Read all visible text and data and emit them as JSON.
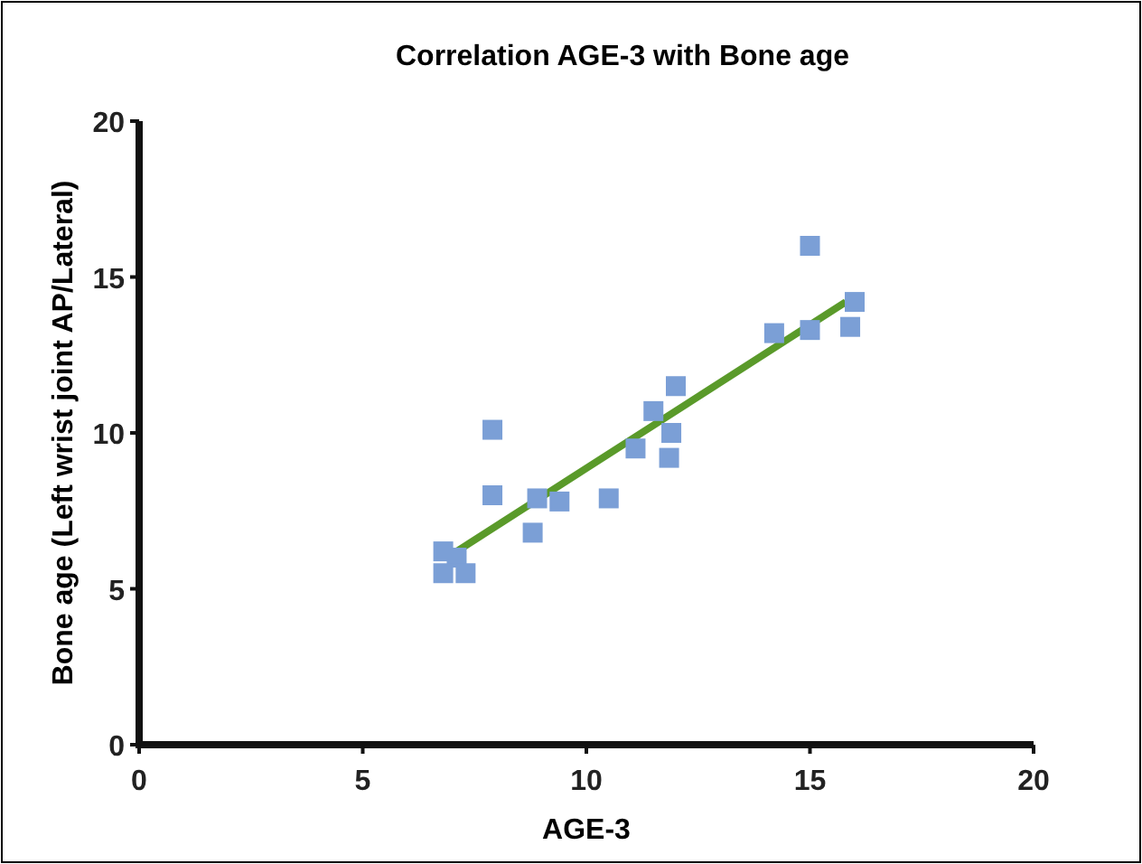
{
  "chart_data": {
    "type": "scatter",
    "title": "Correlation AGE-3 with Bone age",
    "xlabel": "AGE-3",
    "ylabel": "Bone age (Left wrist joint AP/Lateral)",
    "xlim": [
      0,
      20
    ],
    "ylim": [
      0,
      20
    ],
    "xticks": [
      0,
      5,
      10,
      15,
      20
    ],
    "yticks": [
      0,
      5,
      10,
      15,
      20
    ],
    "marker": "square",
    "series": [
      {
        "color": "#7b9fd6",
        "x": [
          6.8,
          7.1,
          6.8,
          7.3,
          7.9,
          7.9,
          8.9,
          8.8,
          9.4,
          10.5,
          11.1,
          11.5,
          11.9,
          11.85,
          12.0,
          14.2,
          15.0,
          15.0,
          15.9,
          16.0
        ],
        "values": [
          6.2,
          6.0,
          5.5,
          5.5,
          10.1,
          8.0,
          7.9,
          6.8,
          7.8,
          7.9,
          9.5,
          10.7,
          10.0,
          9.2,
          11.5,
          13.2,
          16.0,
          13.3,
          13.4,
          14.2
        ]
      },
      {
        "type": "line",
        "color": "#5a9a2a",
        "x": [
          7.1,
          15.8
        ],
        "values": [
          6.2,
          14.2
        ],
        "marker": "none",
        "line_style": "solid"
      }
    ]
  }
}
